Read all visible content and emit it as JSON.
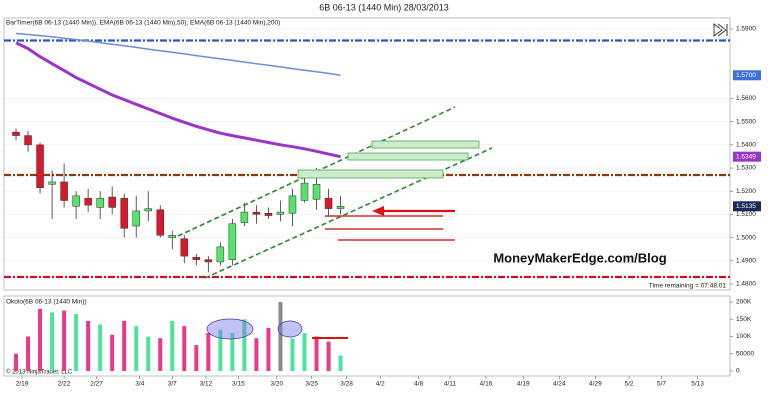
{
  "chart_data": [
    {
      "type": "candlestick",
      "title": "6B 06-13 (1440 Min)  28/03/2013",
      "legend_text": "BarTimer(6B 06-13 (1440 Min)), EMA(6B 06-13 (1440 Min),50), EMA(6B 06-13 (1440 Min),200)",
      "annotations": [
        "MoneyMakerEdge.com/Blog",
        "Time remaining = 07:48:01"
      ],
      "open": [
        1.5455,
        1.544,
        1.54,
        1.523,
        1.524,
        1.5135,
        1.517,
        1.513,
        1.5175,
        1.517,
        1.505,
        1.5115,
        1.512,
        1.5,
        1.4995,
        1.4915,
        1.4905,
        1.4895,
        1.4905,
        1.5065,
        1.511,
        1.5105,
        1.51,
        1.5105,
        1.516,
        1.5165,
        1.517,
        1.5125
      ],
      "high": [
        1.547,
        1.546,
        1.541,
        1.529,
        1.532,
        1.52,
        1.521,
        1.52,
        1.522,
        1.519,
        1.518,
        1.52,
        1.514,
        1.503,
        1.501,
        1.493,
        1.492,
        1.498,
        1.508,
        1.515,
        1.514,
        1.513,
        1.516,
        1.521,
        1.527,
        1.53,
        1.521,
        1.518
      ],
      "low": [
        1.542,
        1.537,
        1.519,
        1.508,
        1.513,
        1.508,
        1.511,
        1.508,
        1.51,
        1.5,
        1.5,
        1.507,
        1.5,
        1.495,
        1.489,
        1.488,
        1.485,
        1.488,
        1.488,
        1.505,
        1.506,
        1.508,
        1.507,
        1.505,
        1.515,
        1.512,
        1.509,
        1.51
      ],
      "close": [
        1.544,
        1.54,
        1.5215,
        1.524,
        1.516,
        1.518,
        1.514,
        1.517,
        1.513,
        1.504,
        1.5115,
        1.5125,
        1.501,
        1.501,
        1.492,
        1.4905,
        1.4895,
        1.496,
        1.506,
        1.511,
        1.51,
        1.5095,
        1.511,
        1.518,
        1.5235,
        1.523,
        1.5125,
        1.5135
      ],
      "up_color": "#55e36a",
      "down_color": "#d8192c",
      "series": [
        {
          "name": "EMA(6B 06-13 (1440 Min),50)",
          "color": "#9a35c8",
          "values": [
            1.584,
            1.5815,
            1.578,
            1.575,
            1.572,
            1.569,
            1.5665,
            1.564,
            1.5615,
            1.5595,
            1.5575,
            1.5555,
            1.5535,
            1.5515,
            1.5497,
            1.548,
            1.5465,
            1.545,
            1.544,
            1.543,
            1.542,
            1.541,
            1.54,
            1.5392,
            1.5383,
            1.5372,
            1.536,
            1.5349
          ]
        },
        {
          "name": "EMA(6B 06-13 (1440 Min),200)",
          "color": "#6d8fd8",
          "values": [
            1.588,
            1.5876,
            1.5871,
            1.5866,
            1.586,
            1.5854,
            1.5848,
            1.5841,
            1.5834,
            1.5827,
            1.582,
            1.5813,
            1.5806,
            1.5799,
            1.5792,
            1.5785,
            1.5778,
            1.5771,
            1.5764,
            1.5757,
            1.575,
            1.5743,
            1.5736,
            1.5729,
            1.5722,
            1.5715,
            1.5708,
            1.57
          ]
        }
      ],
      "levels": [
        {
          "value": 1.585,
          "color": "#2a55c8"
        },
        {
          "value": 1.527,
          "color": "#8b3a0e"
        },
        {
          "value": 1.483,
          "color": "#d01020"
        }
      ],
      "price_markers": [
        {
          "value": 1.57,
          "label": "1.5700",
          "color": "#3d6fd8"
        },
        {
          "value": 1.5349,
          "label": "1.5349",
          "color": "#9a35c8"
        },
        {
          "value": 1.5135,
          "label": "1.5135",
          "color": "#1c2a5a"
        }
      ],
      "xlim": [
        -1,
        59.4
      ],
      "xticks": [
        {
          "value": 0.5,
          "label": "2/19"
        },
        {
          "value": 4,
          "label": "2/22"
        },
        {
          "value": 6.7,
          "label": "2/27"
        },
        {
          "value": 10.3,
          "label": "3/4"
        },
        {
          "value": 13,
          "label": "3/7"
        },
        {
          "value": 15.8,
          "label": "3/12"
        },
        {
          "value": 18.5,
          "label": "3/15"
        },
        {
          "value": 21.7,
          "label": "3/20"
        },
        {
          "value": 24.6,
          "label": "3/25"
        },
        {
          "value": 27.5,
          "label": "3/28"
        },
        {
          "value": 30.3,
          "label": "4/2"
        },
        {
          "value": 33.5,
          "label": "4/8"
        },
        {
          "value": 36.1,
          "label": "4/11"
        },
        {
          "value": 39.1,
          "label": "4/16"
        },
        {
          "value": 42.2,
          "label": "4/19"
        },
        {
          "value": 45.2,
          "label": "4/24"
        },
        {
          "value": 48.2,
          "label": "4/29"
        },
        {
          "value": 51,
          "label": "5/2"
        },
        {
          "value": 53.7,
          "label": "5/7"
        },
        {
          "value": 56.7,
          "label": "5/13"
        }
      ],
      "ylim": [
        1.4774,
        1.5947
      ],
      "yticks": [
        {
          "value": 1.59,
          "label": "1.5900"
        },
        {
          "value": 1.56,
          "label": "1.5600"
        },
        {
          "value": 1.55,
          "label": "1.5500"
        },
        {
          "value": 1.54,
          "label": "1.5400"
        },
        {
          "value": 1.53,
          "label": "1.5300"
        },
        {
          "value": 1.52,
          "label": "1.5200"
        },
        {
          "value": 1.51,
          "label": "1.5100"
        },
        {
          "value": 1.5,
          "label": "1.5000"
        },
        {
          "value": 1.49,
          "label": "1.4900"
        },
        {
          "value": 1.48,
          "label": "1.4800"
        }
      ],
      "grid": true
    },
    {
      "type": "bar",
      "title": "Okolo(6B 06-13 (1440 Min))",
      "footer": "© 2013 NinjaTrader, LLC",
      "values": [
        50000,
        100000,
        180000,
        170000,
        175000,
        165000,
        145000,
        135000,
        105000,
        145000,
        130000,
        100000,
        95000,
        145000,
        130000,
        75000,
        110000,
        120000,
        110000,
        150000,
        95000,
        125000,
        200000,
        95000,
        110000,
        100000,
        85000,
        45000
      ],
      "colors": [
        "#e8398a",
        "#e8398a",
        "#e8398a",
        "#4de39a",
        "#e8398a",
        "#4de39a",
        "#e8398a",
        "#4de39a",
        "#e8398a",
        "#e8398a",
        "#4de39a",
        "#4de39a",
        "#e8398a",
        "#4de39a",
        "#e8398a",
        "#e8398a",
        "#e8398a",
        "#4de39a",
        "#4de39a",
        "#4de39a",
        "#e8398a",
        "#e8398a",
        "#8a8a8a",
        "#4de39a",
        "#4de39a",
        "#e8398a",
        "#e8398a",
        "#4de39a"
      ],
      "ylim": [
        -14500,
        217400
      ],
      "yticks": [
        {
          "value": 200000,
          "label": "200K"
        },
        {
          "value": 150000,
          "label": "150K"
        },
        {
          "value": 100000,
          "label": "100K"
        },
        50000,
        0
      ]
    }
  ]
}
